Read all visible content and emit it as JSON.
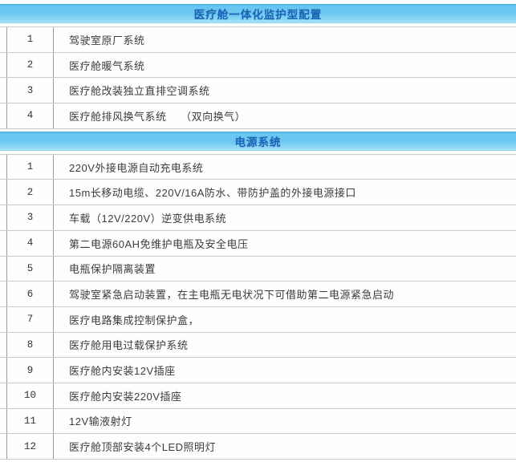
{
  "theme": {
    "header_bg": "#6ec9f1",
    "header_bg_top": "#49b0e0",
    "header_bg_bottom": "#a9e2f8",
    "header_text": "#1d64b6",
    "horizontal_border": "#c9c9c9",
    "vertical_border": "#9c9c9c",
    "row_text": "#3c3c3c",
    "page_bg": "#fdfdfd"
  },
  "sections": [
    {
      "title": "医疗舱一体化监护型配置",
      "rows": [
        {
          "num": "1",
          "text": "驾驶室原厂系统"
        },
        {
          "num": "2",
          "text": "医疗舱暖气系统"
        },
        {
          "num": "3",
          "text": "医疗舱改装独立直排空调系统"
        },
        {
          "num": "4",
          "text": "医疗舱排风换气系统　 （双向换气）"
        }
      ]
    },
    {
      "title": "电源系统",
      "rows": [
        {
          "num": "1",
          "text": "220V外接电源自动充电系统"
        },
        {
          "num": "2",
          "text": "15m长移动电缆、220V/16A防水、带防护盖的外接电源接口"
        },
        {
          "num": "3",
          "text": "车载（12V/220V）逆变供电系统"
        },
        {
          "num": "4",
          "text": "第二电源60AH免维护电瓶及安全电压"
        },
        {
          "num": "5",
          "text": "电瓶保护隔离装置"
        },
        {
          "num": "6",
          "text": "驾驶室紧急启动装置，在主电瓶无电状况下可借助第二电源紧急启动"
        },
        {
          "num": "7",
          "text": "医疗电路集成控制保护盒，"
        },
        {
          "num": "8",
          "text": "医疗舱用电过载保护系统"
        },
        {
          "num": "9",
          "text": "医疗舱内安装12V插座"
        },
        {
          "num": "10",
          "text": "医疗舱内安装220V插座"
        },
        {
          "num": "11",
          "text": "12V输液射灯"
        },
        {
          "num": "12",
          "text": "医疗舱顶部安装4个LED照明灯"
        }
      ]
    }
  ]
}
